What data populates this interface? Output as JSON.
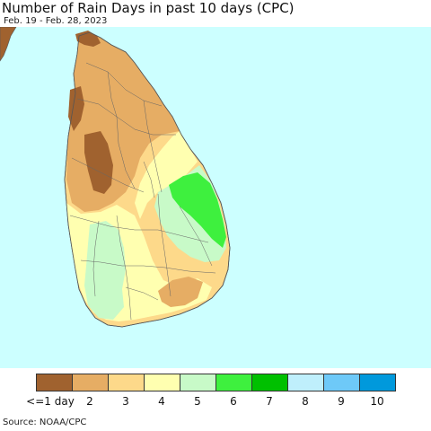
{
  "title": "Number of Rain Days in past 10 days (CPC)",
  "date_range": "Feb. 19 - Feb. 28, 2023",
  "source": "Source: NOAA/CPC",
  "colors": {
    "ocean": "#ccffff",
    "india": "#a0622f",
    "border": "#555555"
  },
  "legend": [
    {
      "label": "<=1 day",
      "color": "#a0622f"
    },
    {
      "label": "2",
      "color": "#e6ad64"
    },
    {
      "label": "3",
      "color": "#fdd98a"
    },
    {
      "label": "4",
      "color": "#ffffb0"
    },
    {
      "label": "5",
      "color": "#c8fac8"
    },
    {
      "label": "6",
      "color": "#3ef03e"
    },
    {
      "label": "7",
      "color": "#00c000"
    },
    {
      "label": "8",
      "color": "#bfeffc"
    },
    {
      "label": "9",
      "color": "#6ec9f8"
    },
    {
      "label": "10",
      "color": "#0099dc"
    }
  ]
}
